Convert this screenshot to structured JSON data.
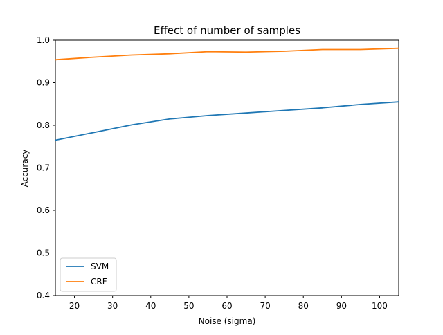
{
  "chart_data": {
    "type": "line",
    "title": "Effect of number of samples",
    "xlabel": "Noise (sigma)",
    "ylabel": "Accuracy",
    "xlim": [
      15,
      105
    ],
    "ylim": [
      0.4,
      1.0
    ],
    "x": [
      15,
      25,
      35,
      45,
      55,
      65,
      75,
      85,
      95,
      105
    ],
    "x_ticks": [
      20,
      30,
      40,
      50,
      60,
      70,
      80,
      90,
      100
    ],
    "y_ticks": [
      0.4,
      0.5,
      0.6,
      0.7,
      0.8,
      0.9,
      1.0
    ],
    "y_tick_labels": [
      "0.4",
      "0.5",
      "0.6",
      "0.7",
      "0.8",
      "0.9",
      "1.0"
    ],
    "grid": false,
    "legend_position": "lower-left",
    "series": [
      {
        "name": "SVM",
        "color": "#1f77b4",
        "values": [
          0.765,
          0.783,
          0.801,
          0.815,
          0.823,
          0.829,
          0.835,
          0.841,
          0.849,
          0.855
        ]
      },
      {
        "name": "CRF",
        "color": "#ff7f0e",
        "values": [
          0.954,
          0.96,
          0.965,
          0.968,
          0.973,
          0.972,
          0.974,
          0.978,
          0.978,
          0.981
        ]
      }
    ]
  }
}
